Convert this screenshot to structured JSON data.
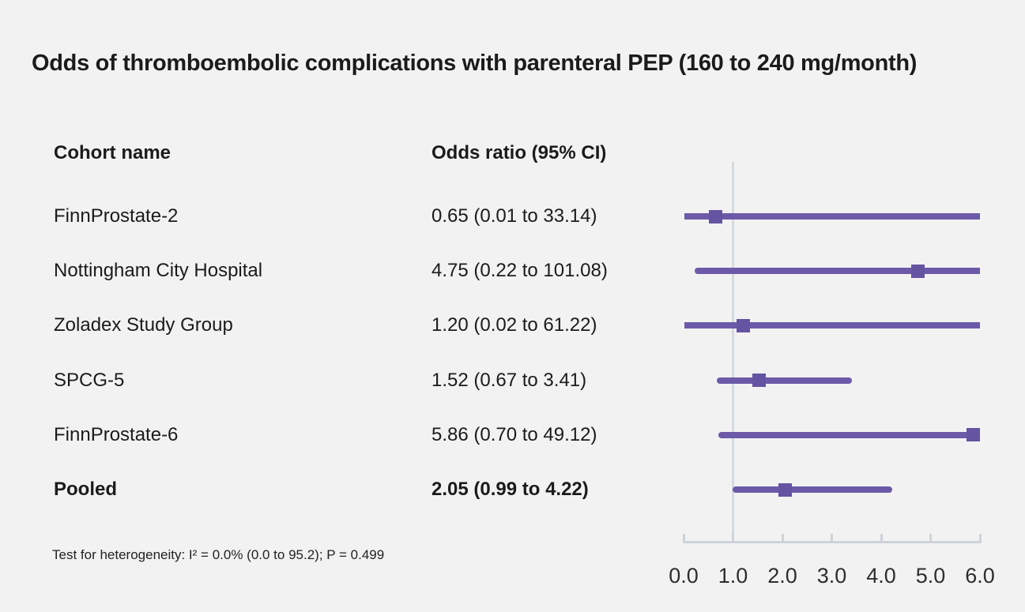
{
  "title": "Odds of thromboembolic complications with parenteral PEP (160 to 240 mg/month)",
  "columns": {
    "cohort": "Cohort name",
    "odds": "Odds ratio (95% CI)"
  },
  "footer": "Test for heterogeneity: I² = 0.0% (0.0 to 95.2); P = 0.499",
  "chart_data": {
    "type": "forest",
    "title": "Odds of thromboembolic complications with parenteral PEP (160 to 240 mg/month)",
    "x_axis": {
      "ticks": [
        0.0,
        1.0,
        2.0,
        3.0,
        4.0,
        5.0,
        6.0
      ],
      "tick_labels": [
        "0.0",
        "1.0",
        "2.0",
        "3.0",
        "4.0",
        "5.0",
        "6.0"
      ],
      "xlim": [
        0,
        6
      ],
      "reference_line": 1.0
    },
    "rows": [
      {
        "name": "FinnProstate-2",
        "value_label": "0.65 (0.01 to 33.14)",
        "or": 0.65,
        "ci_lo": 0.01,
        "ci_hi": 33.14,
        "bold": false
      },
      {
        "name": "Nottingham City Hospital",
        "value_label": "4.75 (0.22 to 101.08)",
        "or": 4.75,
        "ci_lo": 0.22,
        "ci_hi": 101.08,
        "bold": false
      },
      {
        "name": "Zoladex Study Group",
        "value_label": "1.20 (0.02 to 61.22)",
        "or": 1.2,
        "ci_lo": 0.02,
        "ci_hi": 61.22,
        "bold": false
      },
      {
        "name": "SPCG-5",
        "value_label": "1.52 (0.67 to 3.41)",
        "or": 1.52,
        "ci_lo": 0.67,
        "ci_hi": 3.41,
        "bold": false
      },
      {
        "name": "FinnProstate-6",
        "value_label": "5.86 (0.70 to 49.12)",
        "or": 5.86,
        "ci_lo": 0.7,
        "ci_hi": 49.12,
        "bold": false
      },
      {
        "name": "Pooled",
        "value_label": "2.05 (0.99 to 4.22)",
        "or": 2.05,
        "ci_lo": 0.99,
        "ci_hi": 4.22,
        "bold": true
      }
    ]
  },
  "colors": {
    "background": "#f2f2f2",
    "ci_line": "#6c5aa8",
    "marker": "#6454a2",
    "reference_line": "#d5dadf",
    "axis": "#ccd3da",
    "text": "#1b1b1b"
  }
}
